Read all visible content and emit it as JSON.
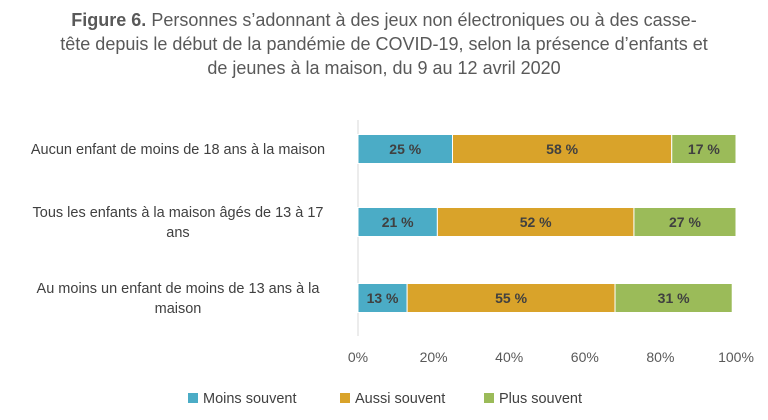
{
  "chart_data": {
    "type": "bar",
    "orientation": "horizontal",
    "stacked": true,
    "title_bold": "Figure 6.",
    "title_text": "Personnes s’adonnant à des jeux non électroniques ou à des casse-tête depuis le début de la pandémie de COVID-19, selon la présence d’enfants et de jeunes à la maison, du 9 au 12 avril 2020",
    "categories": [
      [
        "Aucun enfant de moins de 18 ans à la maison"
      ],
      [
        "Tous les enfants à la maison âgés de 13 à 17",
        "ans"
      ],
      [
        "Au moins un enfant de moins de 13 ans à la",
        "maison"
      ]
    ],
    "series": [
      {
        "name": "Moins souvent",
        "color": "#4BACC6",
        "values": [
          25,
          21,
          13
        ],
        "labels": [
          "25 %",
          "21 %",
          "13 %"
        ]
      },
      {
        "name": "Aussi souvent",
        "color": "#D9A32A",
        "values": [
          58,
          52,
          55
        ],
        "labels": [
          "58 %",
          "52 %",
          "55 %"
        ]
      },
      {
        "name": "Plus souvent",
        "color": "#9BBB59",
        "values": [
          17,
          27,
          31
        ],
        "labels": [
          "17 %",
          "27 %",
          "31 %"
        ]
      }
    ],
    "xlim": [
      0,
      100
    ],
    "xticks": [
      "0%",
      "20%",
      "40%",
      "60%",
      "80%",
      "100%"
    ],
    "grid": false,
    "legend_position": "bottom"
  }
}
